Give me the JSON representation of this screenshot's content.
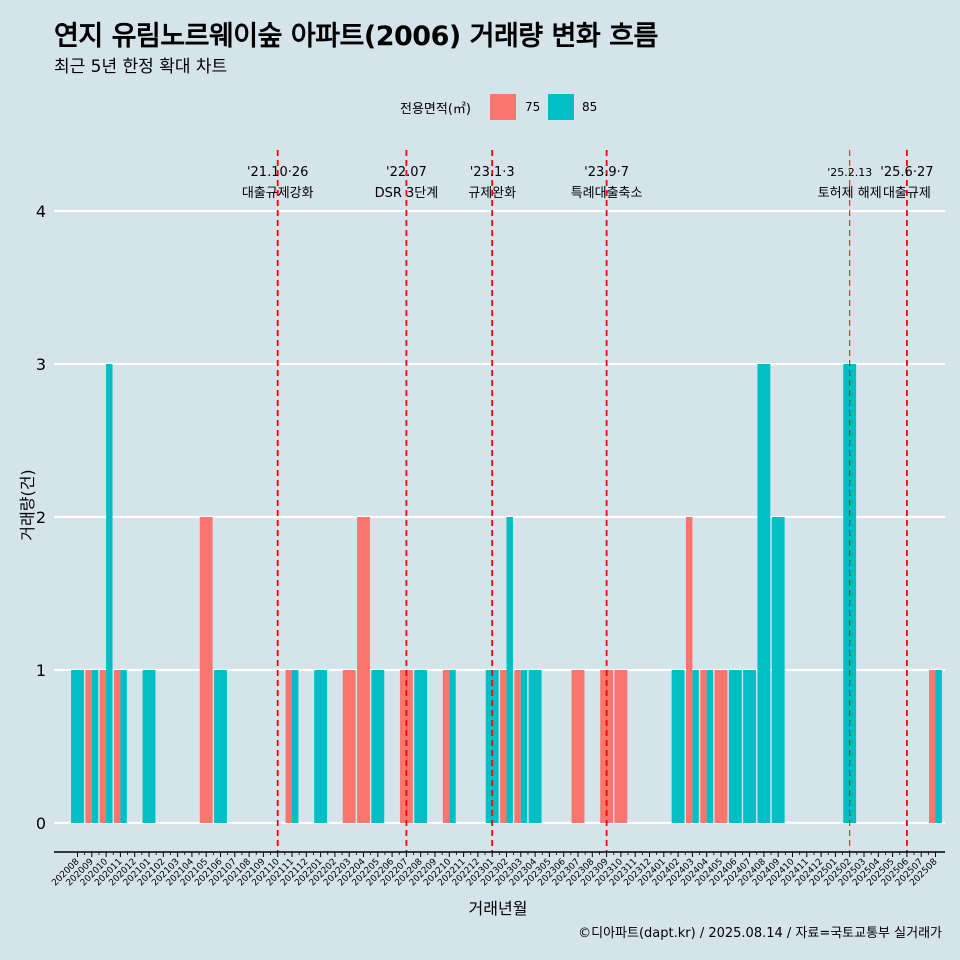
{
  "header": {
    "title": "연지 유림노르웨이숲 아파트(2006) 거래량 변화 흐름",
    "subtitle": "최근 5년 한정 확대 차트"
  },
  "legend": {
    "title": "전용면적(㎡)",
    "items": [
      {
        "label": "75",
        "color": "#F8766D"
      },
      {
        "label": "85",
        "color": "#00BFC4"
      }
    ]
  },
  "caption": "©디아파트(dapt.kr) / 2025.08.14 / 자료=국토교통부 실거래가",
  "chart_data": {
    "type": "bar",
    "xlabel": "거래년월",
    "ylabel": "거래량(건)",
    "ylim": [
      0,
      4
    ],
    "yticks": [
      0,
      1,
      2,
      3,
      4
    ],
    "grid": true,
    "legend_position": "top",
    "categories": [
      "202008",
      "202009",
      "202010",
      "202011",
      "202012",
      "202101",
      "202102",
      "202103",
      "202104",
      "202105",
      "202106",
      "202107",
      "202108",
      "202109",
      "202110",
      "202111",
      "202112",
      "202201",
      "202202",
      "202203",
      "202204",
      "202205",
      "202206",
      "202207",
      "202208",
      "202209",
      "202210",
      "202211",
      "202212",
      "202301",
      "202302",
      "202303",
      "202304",
      "202305",
      "202306",
      "202307",
      "202308",
      "202309",
      "202310",
      "202311",
      "202312",
      "202401",
      "202402",
      "202403",
      "202404",
      "202405",
      "202406",
      "202407",
      "202408",
      "202409",
      "202410",
      "202411",
      "202412",
      "202501",
      "202502",
      "202503",
      "202504",
      "202505",
      "202506",
      "202507",
      "202508"
    ],
    "series": [
      {
        "name": "75",
        "color": "#F8766D",
        "values": [
          0,
          1,
          1,
          1,
          0,
          0,
          0,
          0,
          0,
          2,
          0,
          0,
          0,
          0,
          0,
          1,
          0,
          0,
          0,
          1,
          2,
          0,
          0,
          1,
          0,
          0,
          1,
          0,
          0,
          0,
          1,
          1,
          0,
          0,
          0,
          1,
          0,
          1,
          1,
          0,
          0,
          0,
          0,
          2,
          1,
          1,
          0,
          0,
          0,
          0,
          0,
          0,
          0,
          0,
          0,
          0,
          0,
          0,
          0,
          0,
          1
        ]
      },
      {
        "name": "85",
        "color": "#00BFC4",
        "values": [
          1,
          1,
          3,
          1,
          0,
          1,
          0,
          0,
          0,
          0,
          1,
          0,
          0,
          0,
          0,
          1,
          0,
          1,
          0,
          0,
          0,
          1,
          0,
          0,
          1,
          0,
          1,
          0,
          0,
          1,
          2,
          1,
          1,
          0,
          0,
          0,
          0,
          0,
          0,
          0,
          0,
          0,
          1,
          1,
          1,
          0,
          1,
          1,
          3,
          2,
          0,
          0,
          0,
          0,
          3,
          0,
          0,
          0,
          0,
          0,
          1
        ]
      }
    ],
    "annotations": [
      {
        "at": "202110",
        "date": "'21.10·26",
        "text": "대출규제강화"
      },
      {
        "at": "202207",
        "date": "'22.07",
        "text": "DSR 3단계"
      },
      {
        "at": "202301",
        "date": "'23.1·3",
        "text": "규제완화"
      },
      {
        "at": "202309",
        "date": "'23.9·7",
        "text": "특례대출축소"
      },
      {
        "at": "202502",
        "date": "'25.2.13",
        "text": "토허제 해제"
      },
      {
        "at": "202506",
        "date": "'25.6·27",
        "text": "대출규제"
      }
    ]
  }
}
